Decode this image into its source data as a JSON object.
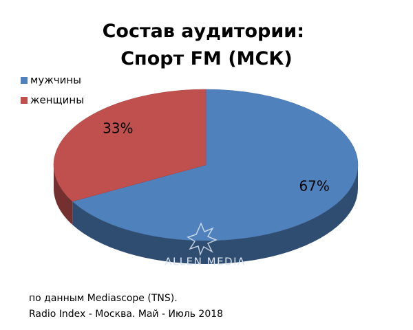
{
  "chart_data": {
    "type": "pie",
    "title": [
      "Состав аудитории:",
      "Спорт FM (МСК)"
    ],
    "categories": [
      "мужчины",
      "женщины"
    ],
    "values": [
      67,
      33
    ],
    "value_labels": [
      "67%",
      "33%"
    ],
    "colors": [
      "#4f81bd",
      "#c0504d"
    ],
    "legend": "top-left",
    "watermark": "ALLEN MEDIA",
    "notes": [
      "по данным Mediascope (TNS).",
      "Radio Index - Москва. Май - Июль 2018"
    ]
  }
}
